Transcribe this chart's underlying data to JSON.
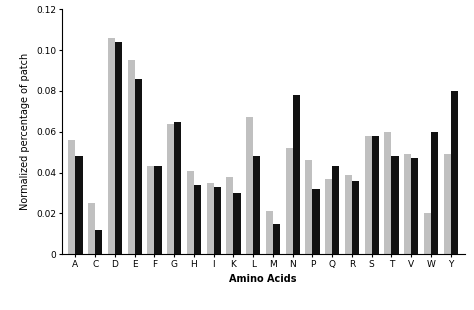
{
  "categories": [
    "A",
    "C",
    "D",
    "E",
    "F",
    "G",
    "H",
    "I",
    "K",
    "L",
    "M",
    "N",
    "P",
    "Q",
    "R",
    "S",
    "T",
    "V",
    "W",
    "Y"
  ],
  "gray_values": [
    0.056,
    0.025,
    0.106,
    0.095,
    0.043,
    0.064,
    0.041,
    0.035,
    0.038,
    0.067,
    0.021,
    0.052,
    0.046,
    0.037,
    0.039,
    0.058,
    0.06,
    0.049,
    0.02,
    0.049
  ],
  "black_values": [
    0.048,
    0.012,
    0.104,
    0.086,
    0.043,
    0.065,
    0.034,
    0.033,
    0.03,
    0.048,
    0.015,
    0.078,
    0.032,
    0.043,
    0.036,
    0.058,
    0.048,
    0.047,
    0.06,
    0.08
  ],
  "gray_color": "#c0c0c0",
  "black_color": "#111111",
  "xlabel": "Amino Acids",
  "ylabel": "Normalized percentage of patch",
  "ylim": [
    0,
    0.12
  ],
  "yticks": [
    0,
    0.02,
    0.04,
    0.06,
    0.08,
    0.1,
    0.12
  ],
  "bar_width": 0.36,
  "xlabel_fontsize": 7,
  "ylabel_fontsize": 7,
  "tick_fontsize": 6.5
}
